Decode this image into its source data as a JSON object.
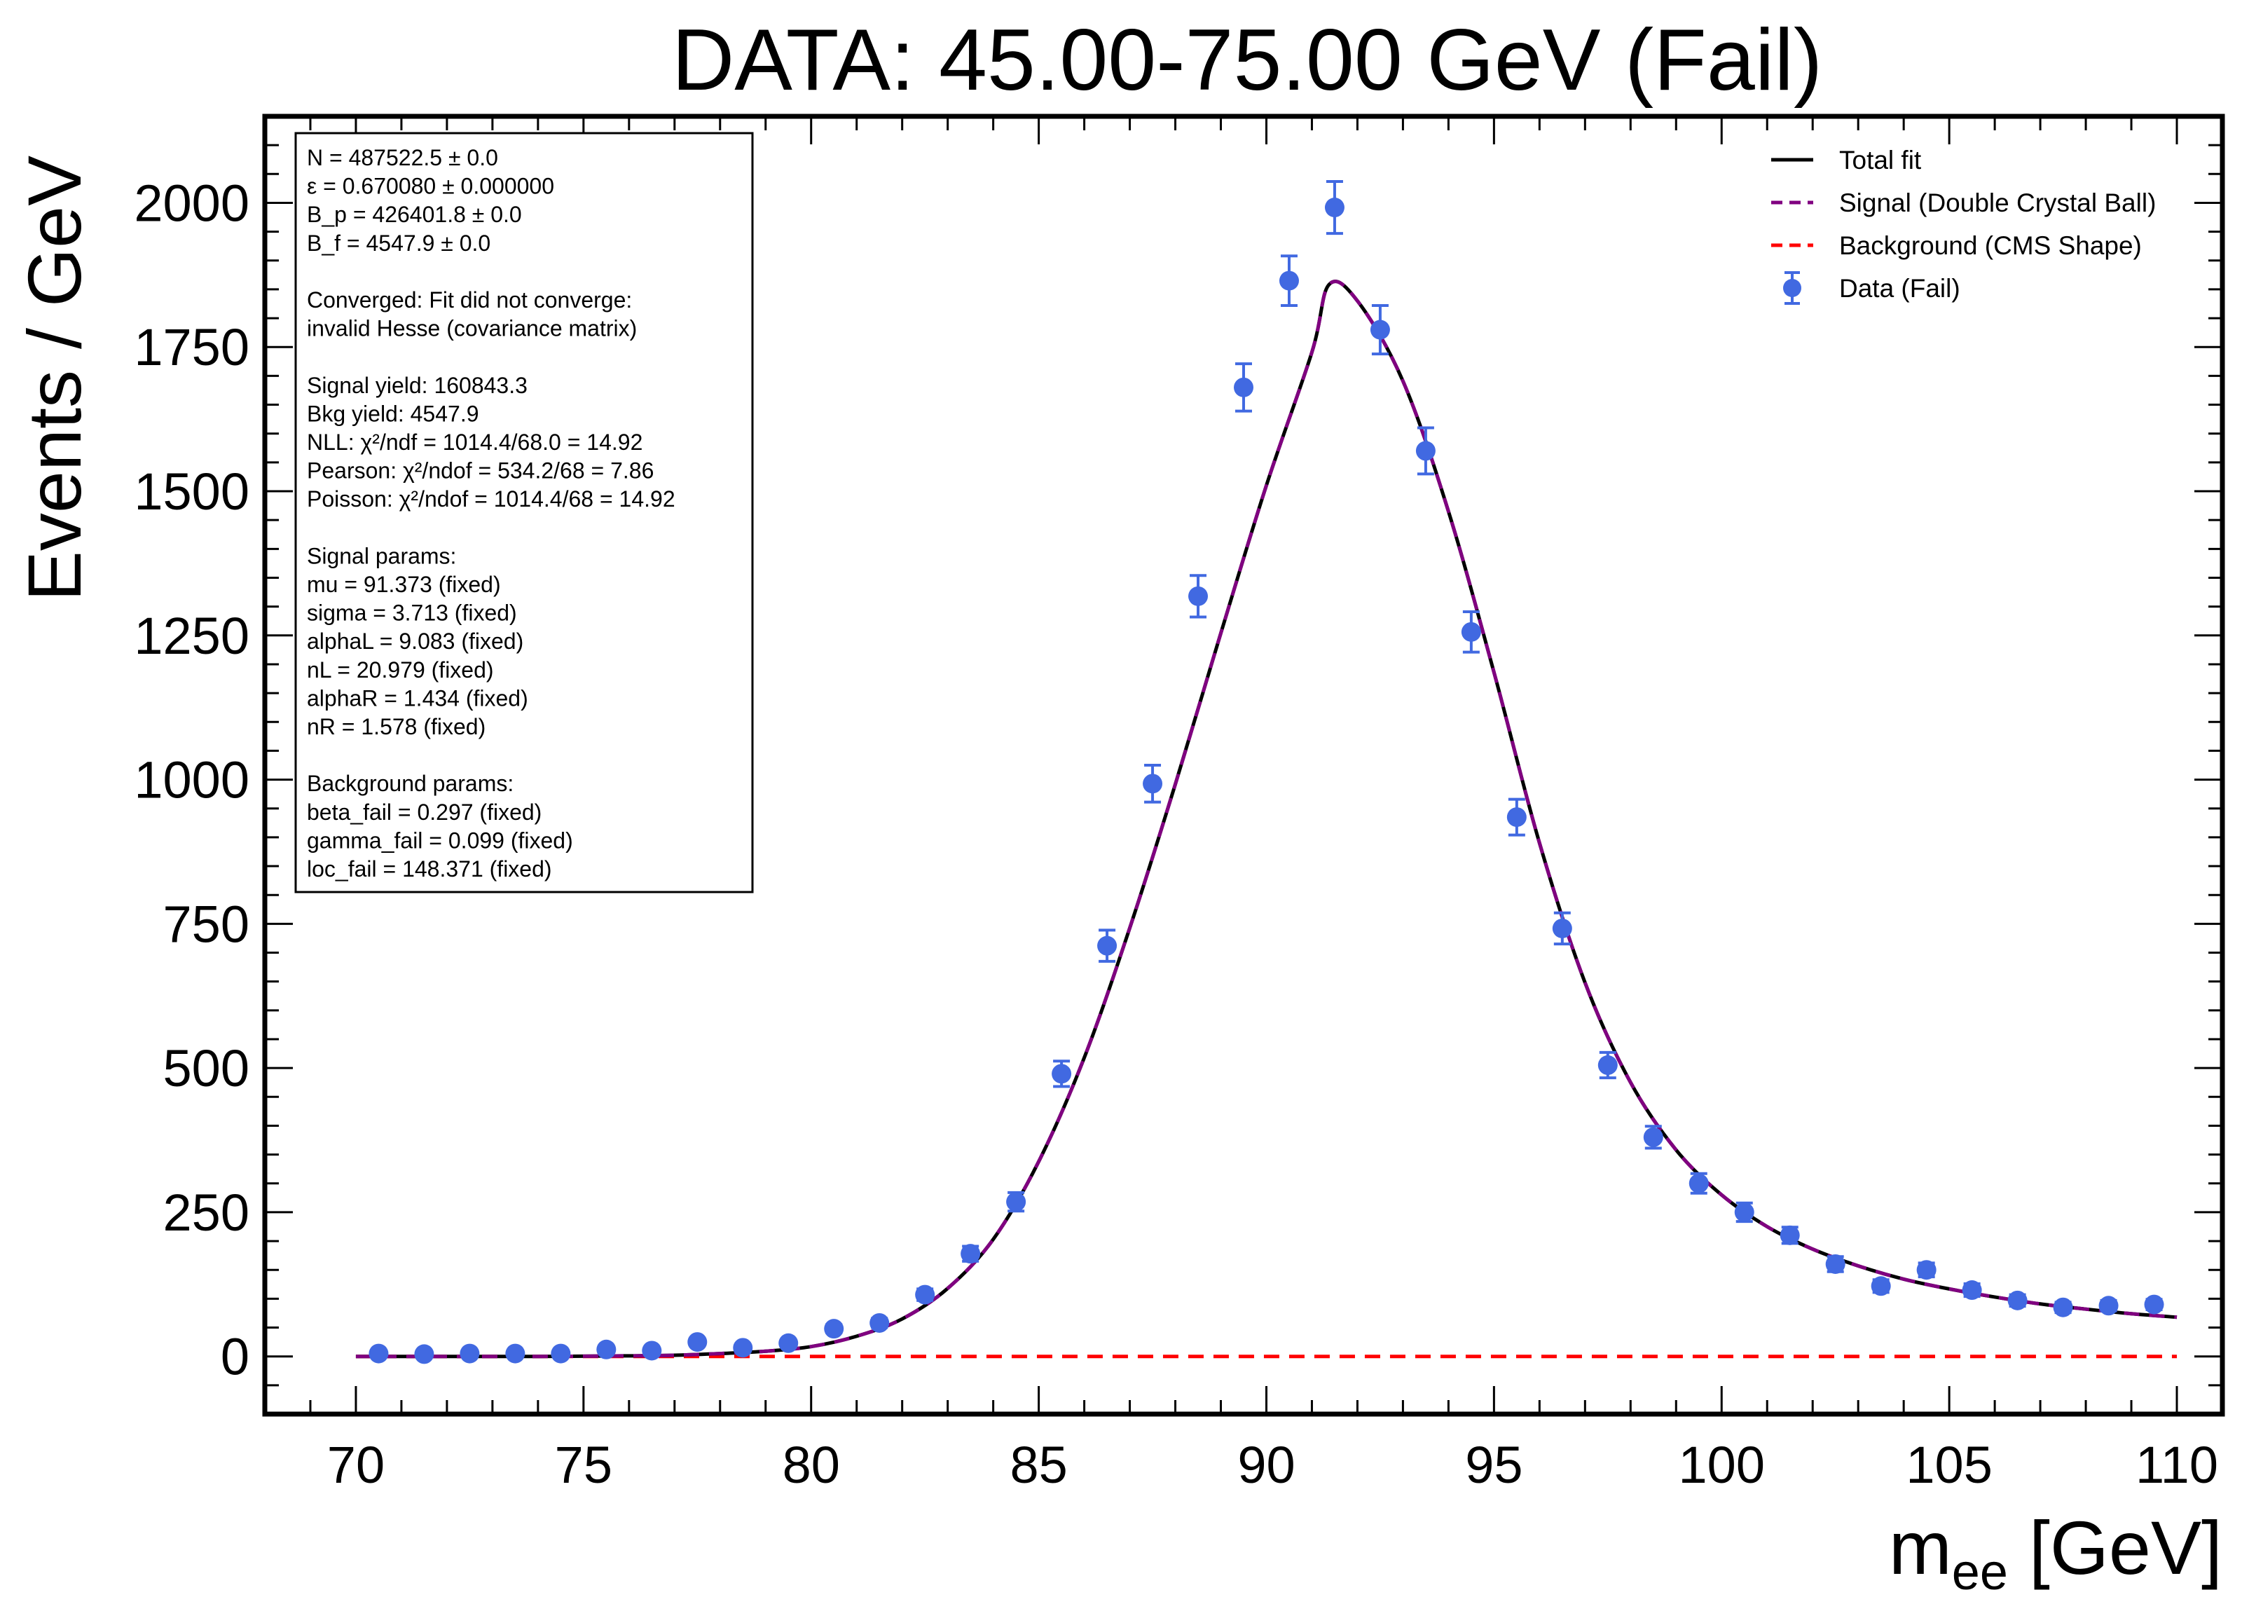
{
  "chart_data": {
    "type": "scatter",
    "title": "DATA: 45.00-75.00 GeV (Fail)",
    "xlabel": {
      "main": "m",
      "sub": "ee",
      "unit": " [GeV]"
    },
    "ylabel": "Events / GeV",
    "xlim": [
      68,
      111
    ],
    "ylim": [
      -100,
      2150
    ],
    "xticks": [
      70,
      75,
      80,
      85,
      90,
      95,
      100,
      105,
      110
    ],
    "yticks": [
      0,
      250,
      500,
      750,
      1000,
      1250,
      1500,
      1750,
      2000
    ],
    "x_minor_step": 1,
    "y_minor_step": 50,
    "legend_position": "top-right",
    "series": [
      {
        "name": "Total fit",
        "kind": "line",
        "color": "#000000",
        "style": "solid"
      },
      {
        "name": "Signal (Double Crystal Ball)",
        "kind": "line",
        "color": "#800080",
        "style": "dashed"
      },
      {
        "name": "Background (CMS Shape)",
        "kind": "line",
        "color": "#ff0000",
        "style": "dashed"
      },
      {
        "name": "Data (Fail)",
        "kind": "errorbar",
        "color": "#4169e1",
        "style": "markers"
      }
    ],
    "data_points": {
      "x": [
        70.5,
        71.5,
        72.5,
        73.5,
        74.5,
        75.5,
        76.5,
        77.5,
        78.5,
        79.5,
        80.5,
        81.5,
        82.5,
        83.5,
        84.5,
        85.5,
        86.5,
        87.5,
        88.5,
        89.5,
        90.5,
        91.5,
        92.5,
        93.5,
        94.5,
        95.5,
        96.5,
        97.5,
        98.5,
        99.5,
        100.5,
        101.5,
        102.5,
        103.5,
        104.5,
        105.5,
        106.5,
        107.5,
        108.5,
        109.5
      ],
      "y": [
        5,
        4,
        5,
        5,
        5,
        12,
        10,
        25,
        15,
        23,
        48,
        58,
        107,
        178,
        268,
        490,
        712,
        993,
        1318,
        1680,
        1865,
        1992,
        1780,
        1570,
        1256,
        935,
        742,
        505,
        380,
        300,
        250,
        210,
        160,
        122,
        150,
        115,
        97,
        85,
        88,
        90
      ],
      "yerr": [
        2,
        2,
        2,
        2,
        2,
        3,
        3,
        5,
        4,
        5,
        7,
        8,
        10,
        13,
        16,
        22,
        27,
        32,
        36,
        41,
        43,
        45,
        42,
        40,
        35,
        31,
        27,
        22,
        19,
        17,
        16,
        14,
        13,
        11,
        12,
        11,
        10,
        9,
        9,
        9
      ]
    },
    "fit_curve": {
      "x": [
        70,
        72,
        74,
        76,
        77,
        78,
        79,
        80,
        81,
        82,
        83,
        84,
        85,
        86,
        87,
        88,
        89,
        90,
        91,
        91.373,
        92,
        93,
        94,
        95,
        96,
        97,
        98,
        99,
        100,
        101,
        102,
        103,
        104,
        105,
        106,
        107,
        108,
        109,
        110
      ],
      "y": [
        0,
        0,
        0,
        1,
        2,
        5,
        9,
        17,
        35,
        65,
        118,
        203,
        338,
        518,
        743,
        992,
        1254,
        1510,
        1741,
        1858,
        1830,
        1691,
        1465,
        1186,
        890,
        648,
        475,
        358,
        280,
        225,
        186,
        157,
        134,
        117,
        103,
        91,
        82,
        74,
        68
      ]
    },
    "background_curve": {
      "x": [
        70,
        110
      ],
      "y": [
        0,
        0
      ]
    }
  },
  "info_box": {
    "lines": [
      "N = 487522.5 ± 0.0",
      "ε = 0.670080 ± 0.000000",
      "B_p = 426401.8 ± 0.0",
      "B_f = 4547.9 ± 0.0",
      "",
      "Converged: Fit did not converge:",
      "invalid Hesse (covariance matrix)",
      "",
      "Signal yield: 160843.3",
      "Bkg yield: 4547.9",
      "NLL: χ²/ndf = 1014.4/68.0 = 14.92",
      "Pearson: χ²/ndof = 534.2/68 = 7.86",
      "Poisson: χ²/ndof = 1014.4/68 = 14.92",
      "",
      "Signal params:",
      "mu = 91.373 (fixed)",
      "sigma = 3.713 (fixed)",
      "alphaL = 9.083 (fixed)",
      "nL = 20.979 (fixed)",
      "alphaR = 1.434 (fixed)",
      "nR = 1.578 (fixed)",
      "",
      "Background params:",
      "beta_fail = 0.297 (fixed)",
      "gamma_fail = 0.099 (fixed)",
      "loc_fail = 148.371 (fixed)"
    ]
  }
}
